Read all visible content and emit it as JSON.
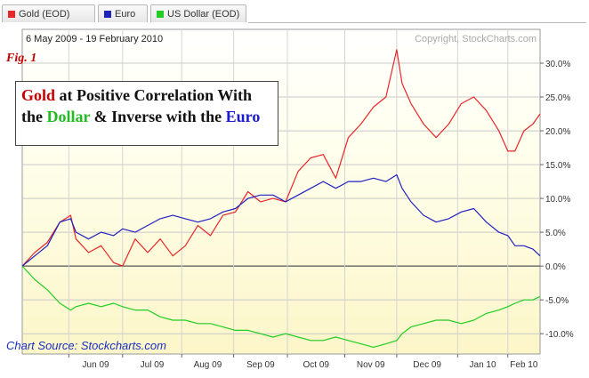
{
  "tabs": [
    {
      "label": "Gold (EOD)",
      "color": "#e8262a"
    },
    {
      "label": "Euro",
      "color": "#2020c0"
    },
    {
      "label": "US Dollar (EOD)",
      "color": "#22cc22"
    }
  ],
  "header": {
    "date_range": "6 May 2009 - 19 February 2010",
    "copyright": "Copyright, StockCharts.com"
  },
  "fig_label": "Fig. 1",
  "annotation": {
    "gold_word": "Gold",
    "part1": " at Positive Correlation With",
    "part2": "the ",
    "dollar_word": "Dollar",
    "part3": " & Inverse with the ",
    "euro_word": "Euro"
  },
  "source": "Chart Source: Stockcharts.com",
  "chart_data": {
    "type": "line",
    "ylim": [
      -13,
      35
    ],
    "y_ticks": [
      30,
      25,
      20,
      15,
      10,
      5,
      0,
      -5,
      -10
    ],
    "y_tick_labels": [
      "30.0%",
      "25.0%",
      "20.0%",
      "15.0%",
      "10.0%",
      "5.0%",
      "0.0%",
      "-5.0%",
      "-10.0%"
    ],
    "x_months": [
      "Jun 09",
      "Jul 09",
      "Aug 09",
      "Sep 09",
      "Oct 09",
      "Nov 09",
      "Dec 09",
      "Jan 10",
      "Feb 10"
    ],
    "x_month_dates": [
      "2009-06-01",
      "2009-07-01",
      "2009-08-03",
      "2009-09-01",
      "2009-10-01",
      "2009-11-02",
      "2009-12-01",
      "2010-01-04",
      "2010-02-01"
    ],
    "x_range": [
      "2009-05-06",
      "2010-02-19"
    ],
    "series": [
      {
        "name": "Gold (EOD)",
        "color": "#e8262a",
        "x": [
          "2009-05-06",
          "2009-05-13",
          "2009-05-20",
          "2009-05-27",
          "2009-06-02",
          "2009-06-05",
          "2009-06-12",
          "2009-06-19",
          "2009-06-26",
          "2009-07-01",
          "2009-07-08",
          "2009-07-15",
          "2009-07-22",
          "2009-07-29",
          "2009-08-05",
          "2009-08-12",
          "2009-08-19",
          "2009-08-26",
          "2009-09-02",
          "2009-09-09",
          "2009-09-16",
          "2009-09-23",
          "2009-09-30",
          "2009-10-07",
          "2009-10-14",
          "2009-10-21",
          "2009-10-28",
          "2009-11-04",
          "2009-11-11",
          "2009-11-18",
          "2009-11-25",
          "2009-12-01",
          "2009-12-04",
          "2009-12-09",
          "2009-12-16",
          "2009-12-23",
          "2009-12-30",
          "2010-01-06",
          "2010-01-13",
          "2010-01-20",
          "2010-01-27",
          "2010-02-01",
          "2010-02-05",
          "2010-02-10",
          "2010-02-15",
          "2010-02-19"
        ],
        "values": [
          0,
          2,
          3.5,
          6.5,
          7.5,
          4,
          2,
          3,
          0.5,
          0,
          4,
          2,
          4,
          1.5,
          3,
          6,
          4.5,
          7.5,
          8,
          11,
          9.5,
          10,
          9.5,
          14,
          16,
          16.5,
          13,
          19,
          21,
          23.5,
          25,
          32,
          27,
          24,
          21,
          19,
          21,
          24,
          25,
          23,
          20,
          17,
          17,
          20,
          21,
          22.5
        ]
      },
      {
        "name": "Euro",
        "color": "#2020c0",
        "x": [
          "2009-05-06",
          "2009-05-13",
          "2009-05-20",
          "2009-05-27",
          "2009-06-02",
          "2009-06-05",
          "2009-06-12",
          "2009-06-19",
          "2009-06-26",
          "2009-07-01",
          "2009-07-08",
          "2009-07-15",
          "2009-07-22",
          "2009-07-29",
          "2009-08-05",
          "2009-08-12",
          "2009-08-19",
          "2009-08-26",
          "2009-09-02",
          "2009-09-09",
          "2009-09-16",
          "2009-09-23",
          "2009-09-30",
          "2009-10-07",
          "2009-10-14",
          "2009-10-21",
          "2009-10-28",
          "2009-11-04",
          "2009-11-11",
          "2009-11-18",
          "2009-11-25",
          "2009-12-01",
          "2009-12-04",
          "2009-12-09",
          "2009-12-16",
          "2009-12-23",
          "2009-12-30",
          "2010-01-06",
          "2010-01-13",
          "2010-01-20",
          "2010-01-27",
          "2010-02-01",
          "2010-02-05",
          "2010-02-10",
          "2010-02-15",
          "2010-02-19"
        ],
        "values": [
          0,
          1.5,
          3,
          6.5,
          7,
          5,
          4,
          5,
          4.5,
          5.5,
          5,
          6,
          7,
          7.5,
          7,
          6.5,
          7,
          8,
          8.5,
          10,
          10.5,
          10.5,
          9.5,
          10.5,
          11.5,
          12.5,
          11.5,
          12.5,
          12.5,
          13,
          12.5,
          13.5,
          11.5,
          9.5,
          7.5,
          6.5,
          7,
          8,
          8.5,
          6.5,
          5,
          4.5,
          3,
          3,
          2.5,
          1.5
        ]
      },
      {
        "name": "US Dollar (EOD)",
        "color": "#22cc22",
        "x": [
          "2009-05-06",
          "2009-05-13",
          "2009-05-20",
          "2009-05-27",
          "2009-06-02",
          "2009-06-05",
          "2009-06-12",
          "2009-06-19",
          "2009-06-26",
          "2009-07-01",
          "2009-07-08",
          "2009-07-15",
          "2009-07-22",
          "2009-07-29",
          "2009-08-05",
          "2009-08-12",
          "2009-08-19",
          "2009-08-26",
          "2009-09-02",
          "2009-09-09",
          "2009-09-16",
          "2009-09-23",
          "2009-09-30",
          "2009-10-07",
          "2009-10-14",
          "2009-10-21",
          "2009-10-28",
          "2009-11-04",
          "2009-11-11",
          "2009-11-18",
          "2009-11-25",
          "2009-12-01",
          "2009-12-04",
          "2009-12-09",
          "2009-12-16",
          "2009-12-23",
          "2009-12-30",
          "2010-01-06",
          "2010-01-13",
          "2010-01-20",
          "2010-01-27",
          "2010-02-01",
          "2010-02-05",
          "2010-02-10",
          "2010-02-15",
          "2010-02-19"
        ],
        "values": [
          0,
          -2,
          -3.5,
          -5.5,
          -6.5,
          -6,
          -5.5,
          -6,
          -5.5,
          -6,
          -6.5,
          -6.5,
          -7.5,
          -8,
          -8,
          -8.5,
          -8.5,
          -9,
          -9.5,
          -9.5,
          -10,
          -10.5,
          -10,
          -10.5,
          -11,
          -11,
          -10.5,
          -11,
          -11.5,
          -12,
          -11.5,
          -11,
          -10,
          -9,
          -8.5,
          -8,
          -8,
          -8.5,
          -8,
          -7,
          -6.5,
          -6,
          -5.5,
          -5,
          -5,
          -4.5
        ]
      }
    ]
  }
}
